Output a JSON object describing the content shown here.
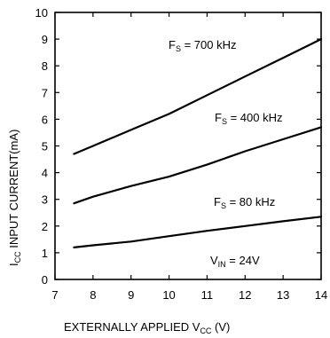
{
  "chart_data": {
    "type": "line",
    "xlabel": {
      "main": "EXTERNALLY APPLIED V",
      "sub": "CC",
      "tail": " (V)"
    },
    "ylabel": {
      "main": "I",
      "sub": "CC",
      "tail": " INPUT CURRENT(mA)"
    },
    "xlim": [
      7,
      14
    ],
    "ylim": [
      0,
      10
    ],
    "x_ticks": [
      "7",
      "8",
      "9",
      "10",
      "11",
      "12",
      "13",
      "14"
    ],
    "y_ticks": [
      "0",
      "1",
      "2",
      "3",
      "4",
      "5",
      "6",
      "7",
      "8",
      "9",
      "10"
    ],
    "grid": false,
    "series": [
      {
        "name": "FS = 700 kHz",
        "label_main": "F",
        "label_sub": "S",
        "label_tail": " = 700 kHz",
        "x": [
          7.5,
          8,
          9,
          10,
          11,
          12,
          13,
          14
        ],
        "y": [
          4.7,
          5.0,
          5.6,
          6.2,
          6.9,
          7.6,
          8.3,
          9.0
        ]
      },
      {
        "name": "FS = 400 kHz",
        "label_main": "F",
        "label_sub": "S",
        "label_tail": " = 400 kHz",
        "x": [
          7.5,
          8,
          9,
          10,
          11,
          12,
          13,
          14
        ],
        "y": [
          2.85,
          3.1,
          3.5,
          3.85,
          4.3,
          4.8,
          5.25,
          5.7
        ]
      },
      {
        "name": "FS = 80 kHz",
        "label_main": "F",
        "label_sub": "S",
        "label_tail": " = 80 kHz",
        "x": [
          7.5,
          8,
          9,
          10,
          11,
          12,
          13,
          14
        ],
        "y": [
          1.2,
          1.28,
          1.42,
          1.62,
          1.82,
          2.0,
          2.18,
          2.35
        ]
      }
    ],
    "annotation": {
      "main": "V",
      "sub": "IN",
      "tail": " = 24V"
    }
  }
}
